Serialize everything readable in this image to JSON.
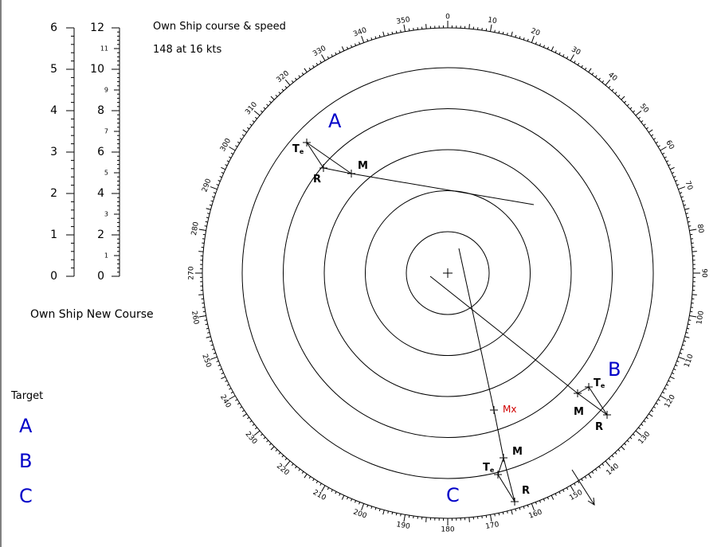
{
  "header": {
    "title": "Own Ship course & speed",
    "value": "148 at 16 kts"
  },
  "new_course_label": "Own Ship New Course",
  "targets": {
    "title": "Target",
    "items": [
      "A",
      "B",
      "C"
    ]
  },
  "scale_left": {
    "ticks": [
      0,
      1,
      2,
      3,
      4,
      5,
      6
    ]
  },
  "scale_right": {
    "major": [
      0,
      2,
      4,
      6,
      8,
      10,
      12
    ],
    "minor": [
      1,
      3,
      5,
      7,
      9,
      11
    ]
  },
  "compass": {
    "bearings": [
      0,
      10,
      20,
      30,
      40,
      50,
      60,
      70,
      80,
      90,
      100,
      110,
      120,
      130,
      140,
      150,
      160,
      170,
      180,
      190,
      200,
      210,
      220,
      230,
      240,
      250,
      260,
      270,
      280,
      290,
      300,
      310,
      320,
      330,
      340,
      350
    ]
  },
  "plot": {
    "A": {
      "name": "A",
      "te": {
        "main": "T",
        "sub": "e"
      },
      "m": "M",
      "r": "R"
    },
    "B": {
      "name": "B",
      "te": {
        "main": "T",
        "sub": "e"
      },
      "m": "M",
      "r": "R"
    },
    "C": {
      "name": "C",
      "te": {
        "main": "T",
        "sub": "e"
      },
      "m": "M",
      "r": "R"
    },
    "mx": "Mx"
  }
}
